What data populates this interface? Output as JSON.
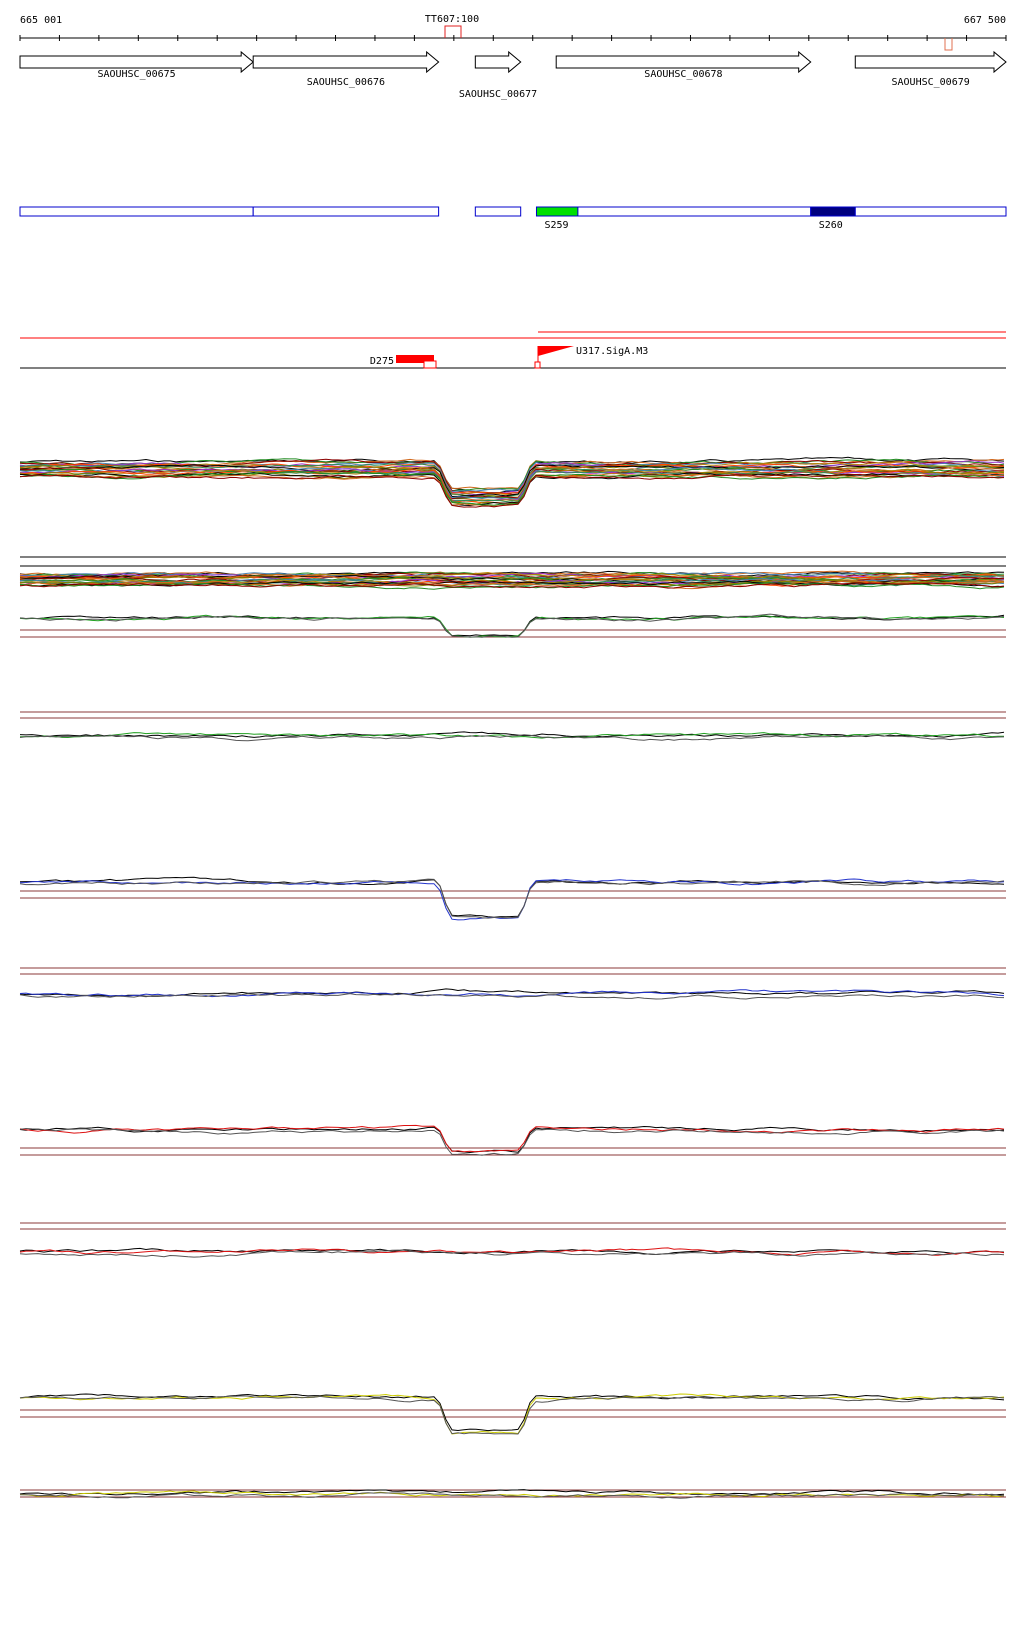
{
  "coordinates": {
    "start": "665 001",
    "end": "667 500",
    "start_bp": 665001,
    "end_bp": 667500
  },
  "terminator": {
    "label": "TT607:100",
    "position_bp": 666080
  },
  "genes": [
    {
      "name": "SAOUHSC_00675",
      "start_bp": 665001,
      "end_bp": 665592,
      "strand": "+"
    },
    {
      "name": "SAOUHSC_00676",
      "start_bp": 665592,
      "end_bp": 666062,
      "strand": "+"
    },
    {
      "name": "SAOUHSC_00677",
      "start_bp": 666155,
      "end_bp": 666270,
      "strand": "+"
    },
    {
      "name": "SAOUHSC_00678",
      "start_bp": 666360,
      "end_bp": 667005,
      "strand": "+"
    },
    {
      "name": "SAOUHSC_00679",
      "start_bp": 667118,
      "end_bp": 667500,
      "strand": "+"
    }
  ],
  "segments": [
    {
      "label": "",
      "start_bp": 665001,
      "end_bp": 665592,
      "color": "#ffffff"
    },
    {
      "label": "",
      "start_bp": 665592,
      "end_bp": 666062,
      "color": "#ffffff"
    },
    {
      "label": "",
      "start_bp": 666155,
      "end_bp": 666270,
      "color": "#ffffff"
    },
    {
      "label": "S259",
      "start_bp": 666310,
      "end_bp": 666415,
      "color": "#00e000"
    },
    {
      "label": "",
      "start_bp": 666415,
      "end_bp": 667005,
      "color": "#ffffff"
    },
    {
      "label": "S260",
      "start_bp": 667005,
      "end_bp": 667118,
      "color": "#00007f"
    },
    {
      "label": "",
      "start_bp": 667118,
      "end_bp": 667500,
      "color": "#ffffff"
    }
  ],
  "features": {
    "down": {
      "label": "D275",
      "start_bp": 665950,
      "end_bp": 666050,
      "color": "#ff0000"
    },
    "up": {
      "label": "U317.SigA.M3",
      "position_bp": 666310,
      "color": "#ff0000"
    }
  },
  "colors": {
    "gene_outline": "#000000",
    "segment_outline": "#0000cc",
    "feature": "#ff0000",
    "baseline": "#8b3a3a"
  },
  "tracks": [
    {
      "name": "multi-condition-profiles",
      "palette": [
        "#000000",
        "#d2691e",
        "#228b22",
        "#8b0000",
        "#4682b4",
        "#9932cc",
        "#b8860b",
        "#ff4500",
        "#2e8b57",
        "#808000"
      ]
    },
    {
      "name": "multi-condition-profiles-reverse",
      "palette": [
        "#000000",
        "#d2691e",
        "#228b22",
        "#8b0000",
        "#4682b4",
        "#9932cc",
        "#b8860b",
        "#ff4500",
        "#2e8b57",
        "#808000"
      ]
    },
    {
      "name": "green-forward",
      "palette": [
        "#000000",
        "#22a022",
        "#555555"
      ]
    },
    {
      "name": "green-reverse",
      "palette": [
        "#000000",
        "#22a022",
        "#555555"
      ]
    },
    {
      "name": "blue-forward",
      "palette": [
        "#000000",
        "#2233cc",
        "#555555"
      ]
    },
    {
      "name": "blue-reverse",
      "palette": [
        "#000000",
        "#2233cc",
        "#555555"
      ]
    },
    {
      "name": "red-forward",
      "palette": [
        "#000000",
        "#dd1111",
        "#555555"
      ]
    },
    {
      "name": "red-reverse",
      "palette": [
        "#000000",
        "#dd1111",
        "#555555"
      ]
    },
    {
      "name": "yellow-forward",
      "palette": [
        "#000000",
        "#cccc00",
        "#555555"
      ]
    },
    {
      "name": "yellow-reverse",
      "palette": [
        "#000000",
        "#cccc00",
        "#555555"
      ]
    }
  ]
}
